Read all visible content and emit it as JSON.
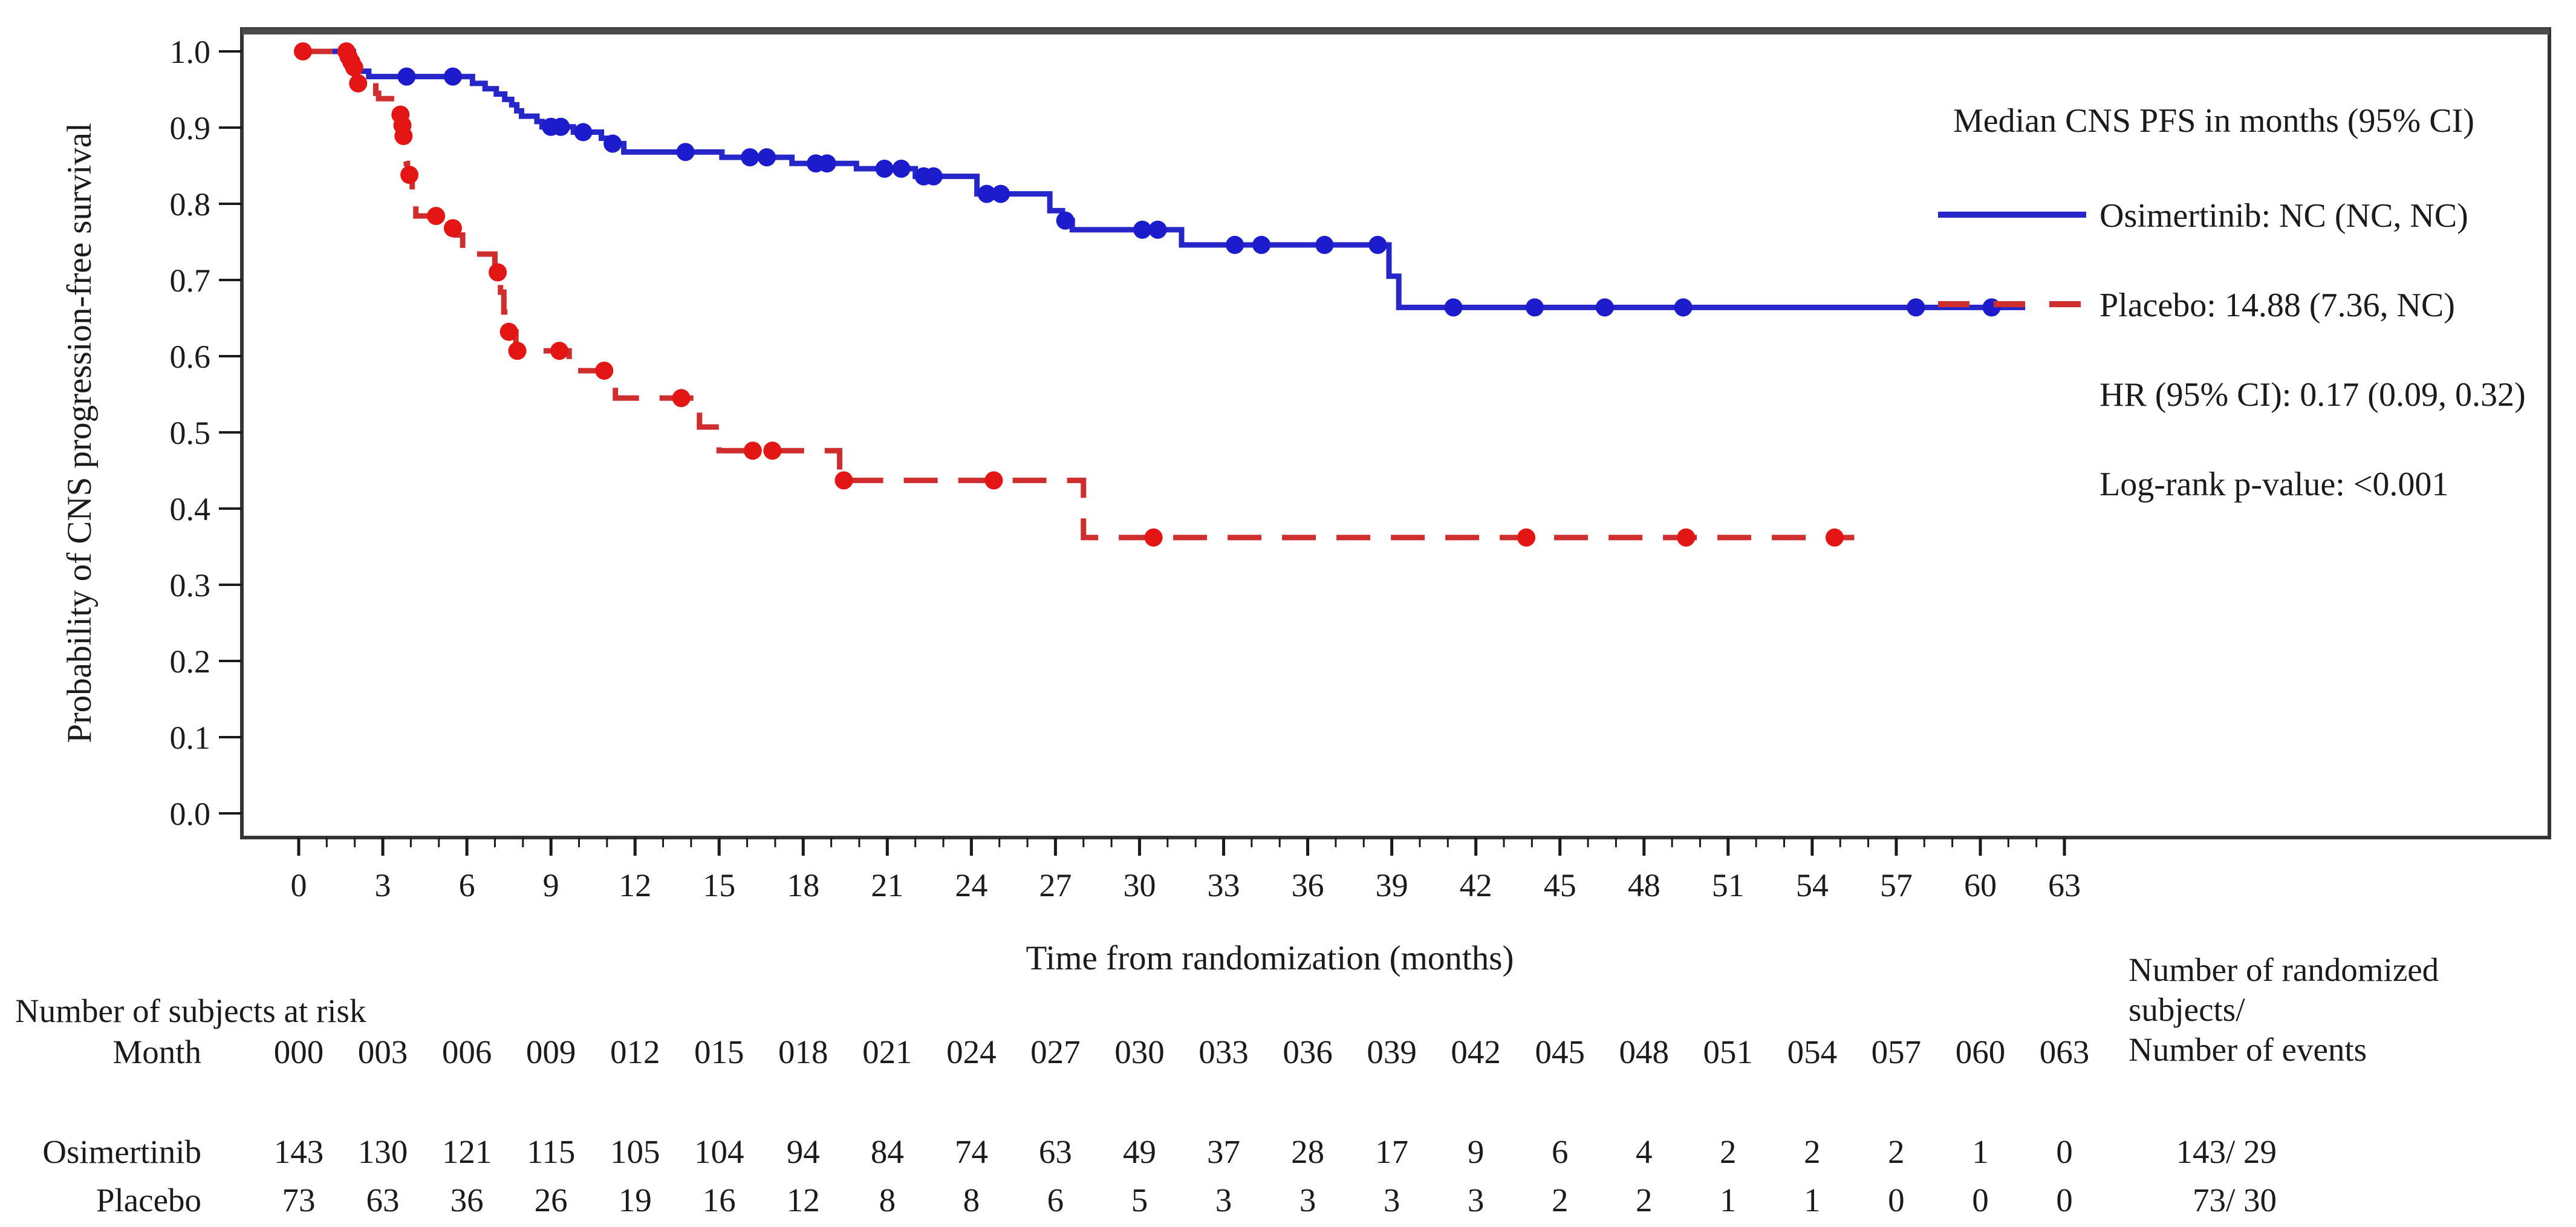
{
  "chart_data": {
    "type": "line",
    "subtype": "kaplan-meier-step",
    "title": "",
    "xlabel": "Time from randomization (months)",
    "ylabel": "Probability of CNS progression-free survival",
    "xlim": [
      0,
      63
    ],
    "ylim": [
      0.0,
      1.0
    ],
    "x_major_tick_step": 3,
    "x_minor_tick_step": 1,
    "grid": false,
    "xtick_labels": [
      "0",
      "3",
      "6",
      "9",
      "12",
      "15",
      "18",
      "21",
      "24",
      "27",
      "30",
      "33",
      "36",
      "39",
      "42",
      "45",
      "48",
      "51",
      "54",
      "57",
      "60",
      "63"
    ],
    "ytick_labels": [
      "0.0",
      "0.1",
      "0.2",
      "0.3",
      "0.4",
      "0.5",
      "0.6",
      "0.7",
      "0.8",
      "0.9",
      "1.0"
    ],
    "legend": {
      "position": "top-right-inside",
      "title": "Median CNS PFS in months (95% CI)",
      "entries": [
        {
          "name": "Osimertinib",
          "label": "Osimertinib: NC (NC, NC)",
          "color": "#2626c9",
          "style": "solid"
        },
        {
          "name": "Placebo",
          "label": "Placebo: 14.88 (7.36, NC)",
          "color": "#cf2e2e",
          "style": "dashed"
        }
      ],
      "stats": [
        "HR (95% CI): 0.17 (0.09, 0.32)",
        "Log-rank p-value: <0.001"
      ]
    },
    "series": [
      {
        "name": "Osimertinib",
        "color": "#2626c9",
        "dot_color": "#1c1ccd",
        "style": "solid",
        "start": [
          0,
          1.0
        ],
        "end_time": 61.6,
        "steps": [
          [
            1.95,
            0.974
          ],
          [
            2.5,
            0.967
          ],
          [
            6.2,
            0.958
          ],
          [
            6.65,
            0.951
          ],
          [
            7.05,
            0.944
          ],
          [
            7.35,
            0.937
          ],
          [
            7.6,
            0.93
          ],
          [
            7.78,
            0.922
          ],
          [
            7.95,
            0.915
          ],
          [
            8.5,
            0.908
          ],
          [
            8.68,
            0.901
          ],
          [
            9.8,
            0.894
          ],
          [
            10.8,
            0.886
          ],
          [
            11.05,
            0.879
          ],
          [
            11.6,
            0.868
          ],
          [
            15.1,
            0.861
          ],
          [
            17.6,
            0.853
          ],
          [
            19.9,
            0.846
          ],
          [
            22.0,
            0.836
          ],
          [
            24.2,
            0.813
          ],
          [
            26.8,
            0.791
          ],
          [
            27.25,
            0.778
          ],
          [
            27.6,
            0.766
          ],
          [
            31.5,
            0.746
          ],
          [
            38.9,
            0.705
          ],
          [
            39.25,
            0.664
          ]
        ],
        "censors": [
          [
            3.85,
            0.967
          ],
          [
            5.5,
            0.967
          ],
          [
            9.0,
            0.901
          ],
          [
            9.35,
            0.901
          ],
          [
            10.15,
            0.894
          ],
          [
            11.2,
            0.879
          ],
          [
            13.8,
            0.868
          ],
          [
            16.1,
            0.861
          ],
          [
            16.7,
            0.861
          ],
          [
            18.45,
            0.853
          ],
          [
            18.85,
            0.853
          ],
          [
            20.9,
            0.846
          ],
          [
            21.5,
            0.846
          ],
          [
            22.3,
            0.836
          ],
          [
            22.65,
            0.836
          ],
          [
            24.55,
            0.813
          ],
          [
            25.05,
            0.813
          ],
          [
            27.35,
            0.778
          ],
          [
            30.1,
            0.766
          ],
          [
            30.65,
            0.766
          ],
          [
            33.4,
            0.746
          ],
          [
            34.35,
            0.746
          ],
          [
            36.6,
            0.746
          ],
          [
            38.5,
            0.746
          ],
          [
            41.2,
            0.664
          ],
          [
            44.1,
            0.664
          ],
          [
            46.6,
            0.664
          ],
          [
            49.4,
            0.664
          ],
          [
            57.7,
            0.664
          ],
          [
            60.4,
            0.664
          ]
        ]
      },
      {
        "name": "Placebo",
        "color": "#cf2e2e",
        "dot_color": "#e41515",
        "style": "dashed",
        "start": [
          0,
          1.0
        ],
        "end_time": 55.5,
        "steps": [
          [
            1.75,
            0.993
          ],
          [
            1.85,
            0.986
          ],
          [
            1.95,
            0.979
          ],
          [
            2.03,
            0.972
          ],
          [
            2.1,
            0.959
          ],
          [
            2.75,
            0.945
          ],
          [
            2.85,
            0.938
          ],
          [
            3.6,
            0.924
          ],
          [
            3.66,
            0.91
          ],
          [
            3.71,
            0.896
          ],
          [
            3.76,
            0.882
          ],
          [
            3.8,
            0.868
          ],
          [
            3.84,
            0.853
          ],
          [
            3.88,
            0.838
          ],
          [
            4.05,
            0.811
          ],
          [
            4.18,
            0.784
          ],
          [
            5.6,
            0.759
          ],
          [
            5.85,
            0.734
          ],
          [
            7.0,
            0.71
          ],
          [
            7.2,
            0.684
          ],
          [
            7.32,
            0.658
          ],
          [
            7.45,
            0.632
          ],
          [
            7.75,
            0.607
          ],
          [
            9.65,
            0.581
          ],
          [
            11.0,
            0.563
          ],
          [
            11.3,
            0.545
          ],
          [
            14.3,
            0.507
          ],
          [
            15.0,
            0.476
          ],
          [
            19.3,
            0.437
          ],
          [
            28.0,
            0.362
          ]
        ],
        "censors": [
          [
            0.15,
            1.0
          ],
          [
            1.7,
            1.0
          ],
          [
            1.78,
            0.993
          ],
          [
            1.88,
            0.986
          ],
          [
            1.98,
            0.979
          ],
          [
            2.12,
            0.958
          ],
          [
            3.63,
            0.917
          ],
          [
            3.7,
            0.903
          ],
          [
            3.74,
            0.889
          ],
          [
            3.95,
            0.838
          ],
          [
            4.9,
            0.784
          ],
          [
            5.5,
            0.768
          ],
          [
            7.1,
            0.71
          ],
          [
            7.5,
            0.632
          ],
          [
            7.8,
            0.607
          ],
          [
            9.3,
            0.607
          ],
          [
            10.9,
            0.581
          ],
          [
            13.65,
            0.545
          ],
          [
            16.2,
            0.476
          ],
          [
            16.9,
            0.476
          ],
          [
            19.45,
            0.437
          ],
          [
            24.8,
            0.437
          ],
          [
            30.5,
            0.362
          ],
          [
            43.8,
            0.362
          ],
          [
            49.5,
            0.362
          ],
          [
            54.8,
            0.362
          ]
        ]
      }
    ],
    "at_risk": {
      "title": "Number of subjects at risk",
      "row_header": "Month",
      "months": [
        0,
        3,
        6,
        9,
        12,
        15,
        18,
        21,
        24,
        27,
        30,
        33,
        36,
        39,
        42,
        45,
        48,
        51,
        54,
        57,
        60,
        63
      ],
      "month_labels": [
        "000",
        "003",
        "006",
        "009",
        "012",
        "015",
        "018",
        "021",
        "024",
        "027",
        "030",
        "033",
        "036",
        "039",
        "042",
        "045",
        "048",
        "051",
        "054",
        "057",
        "060",
        "063"
      ],
      "right_header": [
        "Number of randomized",
        "subjects/",
        "Number of events"
      ],
      "rows": [
        {
          "label": "Osimertinib",
          "counts": [
            "143",
            "130",
            "121",
            "115",
            "105",
            "104",
            "94",
            "84",
            "74",
            "63",
            "49",
            "37",
            "28",
            "17",
            "9",
            "6",
            "4",
            "2",
            "2",
            "2",
            "1",
            "0"
          ],
          "summary": "143/ 29"
        },
        {
          "label": "Placebo",
          "counts": [
            "73",
            "63",
            "36",
            "26",
            "19",
            "16",
            "12",
            "8",
            "8",
            "6",
            "5",
            "3",
            "3",
            "3",
            "3",
            "2",
            "2",
            "1",
            "1",
            "0",
            "0",
            "0"
          ],
          "summary": "73/ 30"
        }
      ]
    },
    "colors": {
      "frame": "#343434",
      "frame_top": "#4a4a4a",
      "tick": "#1a1a1a",
      "text": "#1b1b1b",
      "background": "#ffffff"
    }
  }
}
